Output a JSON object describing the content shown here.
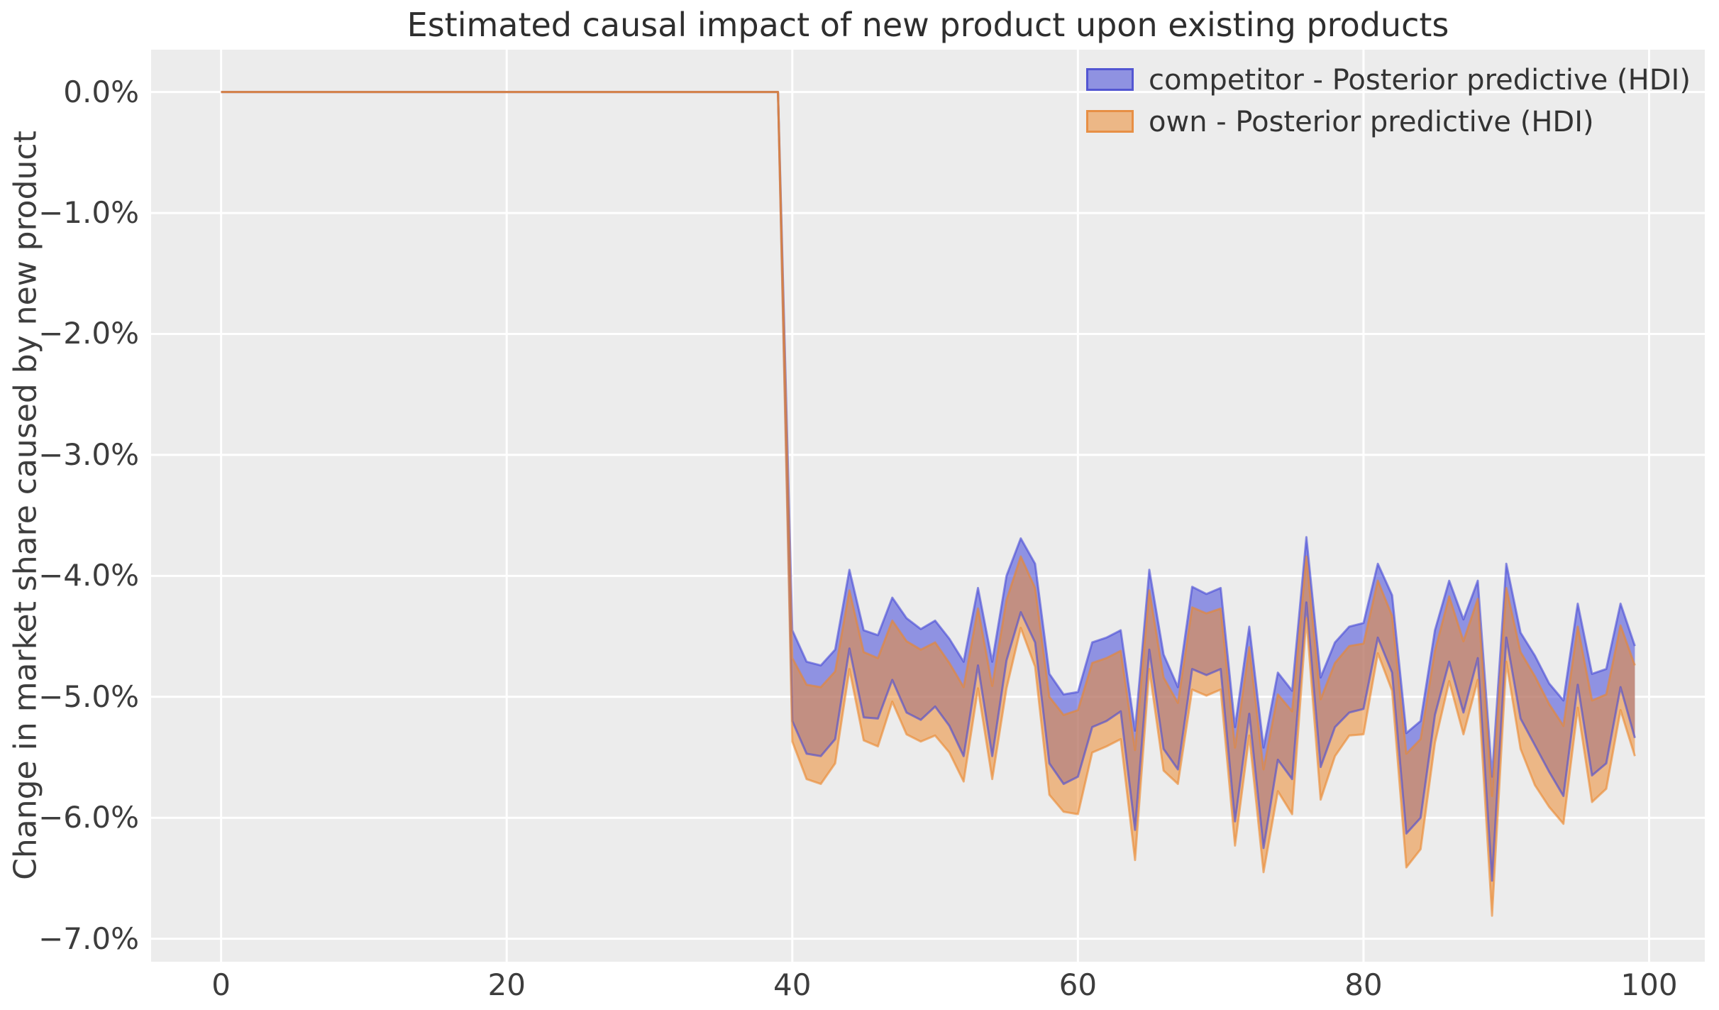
{
  "figure": {
    "title": "Estimated causal impact of new product upon existing products",
    "ylabel": "Change in market share caused by new product",
    "background_color": "#ffffff",
    "axes_background_color": "#ececec",
    "gridline_color": "#ffffff"
  },
  "legend": {
    "items": [
      {
        "label": "competitor - Posterior predictive (HDI)",
        "color": "#8f92e1",
        "edge_color": "#5356d2"
      },
      {
        "label": "own - Posterior predictive (HDI)",
        "color": "#ecb786",
        "edge_color": "#e78f45"
      }
    ]
  },
  "chart_data": {
    "type": "area",
    "title": "Estimated causal impact of new product upon existing products",
    "xlabel": "",
    "ylabel": "Change in market share caused by new product",
    "grid": true,
    "legend_position": "upper right",
    "xlim": [
      -4.9,
      103.9
    ],
    "ylim_percent": [
      -7.19,
      0.35
    ],
    "x_ticks": [
      0,
      20,
      40,
      60,
      80,
      100
    ],
    "x_tick_labels": [
      "0",
      "20",
      "40",
      "60",
      "80",
      "100"
    ],
    "y_ticks_percent": [
      0,
      -1,
      -2,
      -3,
      -4,
      -5,
      -6,
      -7
    ],
    "y_tick_labels": [
      "0.0%",
      "−1.0%",
      "−2.0%",
      "−3.0%",
      "−4.0%",
      "−5.0%",
      "−6.0%",
      "−7.0%"
    ],
    "pre_period": {
      "x_start": 0,
      "x_end": 39,
      "upper_percent": 0.0,
      "lower_percent": 0.0
    },
    "post_period_x_start": 40,
    "series": [
      {
        "name": "competitor - Posterior predictive (HDI)",
        "kind": "hdi_band",
        "fill_color": "#3a40d8",
        "fill_opacity": 0.52,
        "edge_color": "#464ad7",
        "edge_opacity": 0.6,
        "upper_percent": [
          -4.45,
          -4.71,
          -4.74,
          -4.61,
          -3.95,
          -4.45,
          -4.49,
          -4.18,
          -4.35,
          -4.44,
          -4.37,
          -4.52,
          -4.71,
          -4.1,
          -4.71,
          -4.0,
          -3.69,
          -3.9,
          -4.81,
          -4.98,
          -4.96,
          -4.55,
          -4.51,
          -4.45,
          -5.28,
          -3.95,
          -4.65,
          -4.92,
          -4.09,
          -4.15,
          -4.1,
          -5.25,
          -4.42,
          -5.42,
          -4.8,
          -4.95,
          -3.68,
          -4.84,
          -4.55,
          -4.42,
          -4.39,
          -3.9,
          -4.16,
          -5.3,
          -5.2,
          -4.45,
          -4.04,
          -4.36,
          -4.04,
          -5.66,
          -3.9,
          -4.47,
          -4.66,
          -4.89,
          -5.03,
          -4.23,
          -4.81,
          -4.77,
          -4.23,
          -4.58
        ],
        "lower_percent": [
          -5.2,
          -5.47,
          -5.49,
          -5.35,
          -4.6,
          -5.17,
          -5.18,
          -4.86,
          -5.13,
          -5.19,
          -5.08,
          -5.24,
          -5.49,
          -4.74,
          -5.49,
          -4.7,
          -4.3,
          -4.55,
          -5.55,
          -5.72,
          -5.66,
          -5.25,
          -5.2,
          -5.12,
          -6.1,
          -4.61,
          -5.43,
          -5.6,
          -4.77,
          -4.82,
          -4.77,
          -6.03,
          -5.14,
          -6.25,
          -5.52,
          -5.68,
          -4.22,
          -5.58,
          -5.25,
          -5.13,
          -5.1,
          -4.51,
          -4.8,
          -6.13,
          -6.0,
          -5.15,
          -4.71,
          -5.13,
          -4.68,
          -6.52,
          -4.51,
          -5.18,
          -5.4,
          -5.62,
          -5.82,
          -4.9,
          -5.65,
          -5.55,
          -4.92,
          -5.34
        ]
      },
      {
        "name": "own - Posterior predictive (HDI)",
        "kind": "hdi_band",
        "fill_color": "#ec8c33",
        "fill_opacity": 0.55,
        "edge_color": "#eb872d",
        "edge_opacity": 0.6,
        "upper_percent": [
          -4.68,
          -4.9,
          -4.92,
          -4.79,
          -4.12,
          -4.63,
          -4.68,
          -4.37,
          -4.54,
          -4.61,
          -4.55,
          -4.72,
          -4.92,
          -4.27,
          -4.91,
          -4.2,
          -3.84,
          -4.1,
          -5.0,
          -5.15,
          -5.11,
          -4.72,
          -4.68,
          -4.62,
          -5.44,
          -4.12,
          -4.84,
          -5.05,
          -4.26,
          -4.31,
          -4.27,
          -5.42,
          -4.59,
          -5.6,
          -4.98,
          -5.12,
          -3.84,
          -5.02,
          -4.72,
          -4.58,
          -4.56,
          -4.04,
          -4.33,
          -5.47,
          -5.35,
          -4.62,
          -4.17,
          -4.54,
          -4.19,
          -5.82,
          -4.1,
          -4.63,
          -4.83,
          -5.06,
          -5.24,
          -4.42,
          -5.03,
          -4.98,
          -4.41,
          -4.74
        ],
        "lower_percent": [
          -5.37,
          -5.68,
          -5.72,
          -5.55,
          -4.77,
          -5.36,
          -5.41,
          -5.04,
          -5.31,
          -5.37,
          -5.32,
          -5.46,
          -5.7,
          -4.93,
          -5.68,
          -4.93,
          -4.43,
          -4.75,
          -5.81,
          -5.95,
          -5.97,
          -5.46,
          -5.41,
          -5.35,
          -6.35,
          -4.77,
          -5.61,
          -5.72,
          -4.94,
          -4.99,
          -4.94,
          -6.23,
          -5.32,
          -6.45,
          -5.78,
          -5.97,
          -4.35,
          -5.85,
          -5.49,
          -5.32,
          -5.31,
          -4.64,
          -4.95,
          -6.41,
          -6.26,
          -5.38,
          -4.87,
          -5.31,
          -4.86,
          -6.81,
          -4.71,
          -5.43,
          -5.73,
          -5.91,
          -6.05,
          -5.09,
          -5.87,
          -5.76,
          -5.11,
          -5.49
        ]
      }
    ]
  }
}
